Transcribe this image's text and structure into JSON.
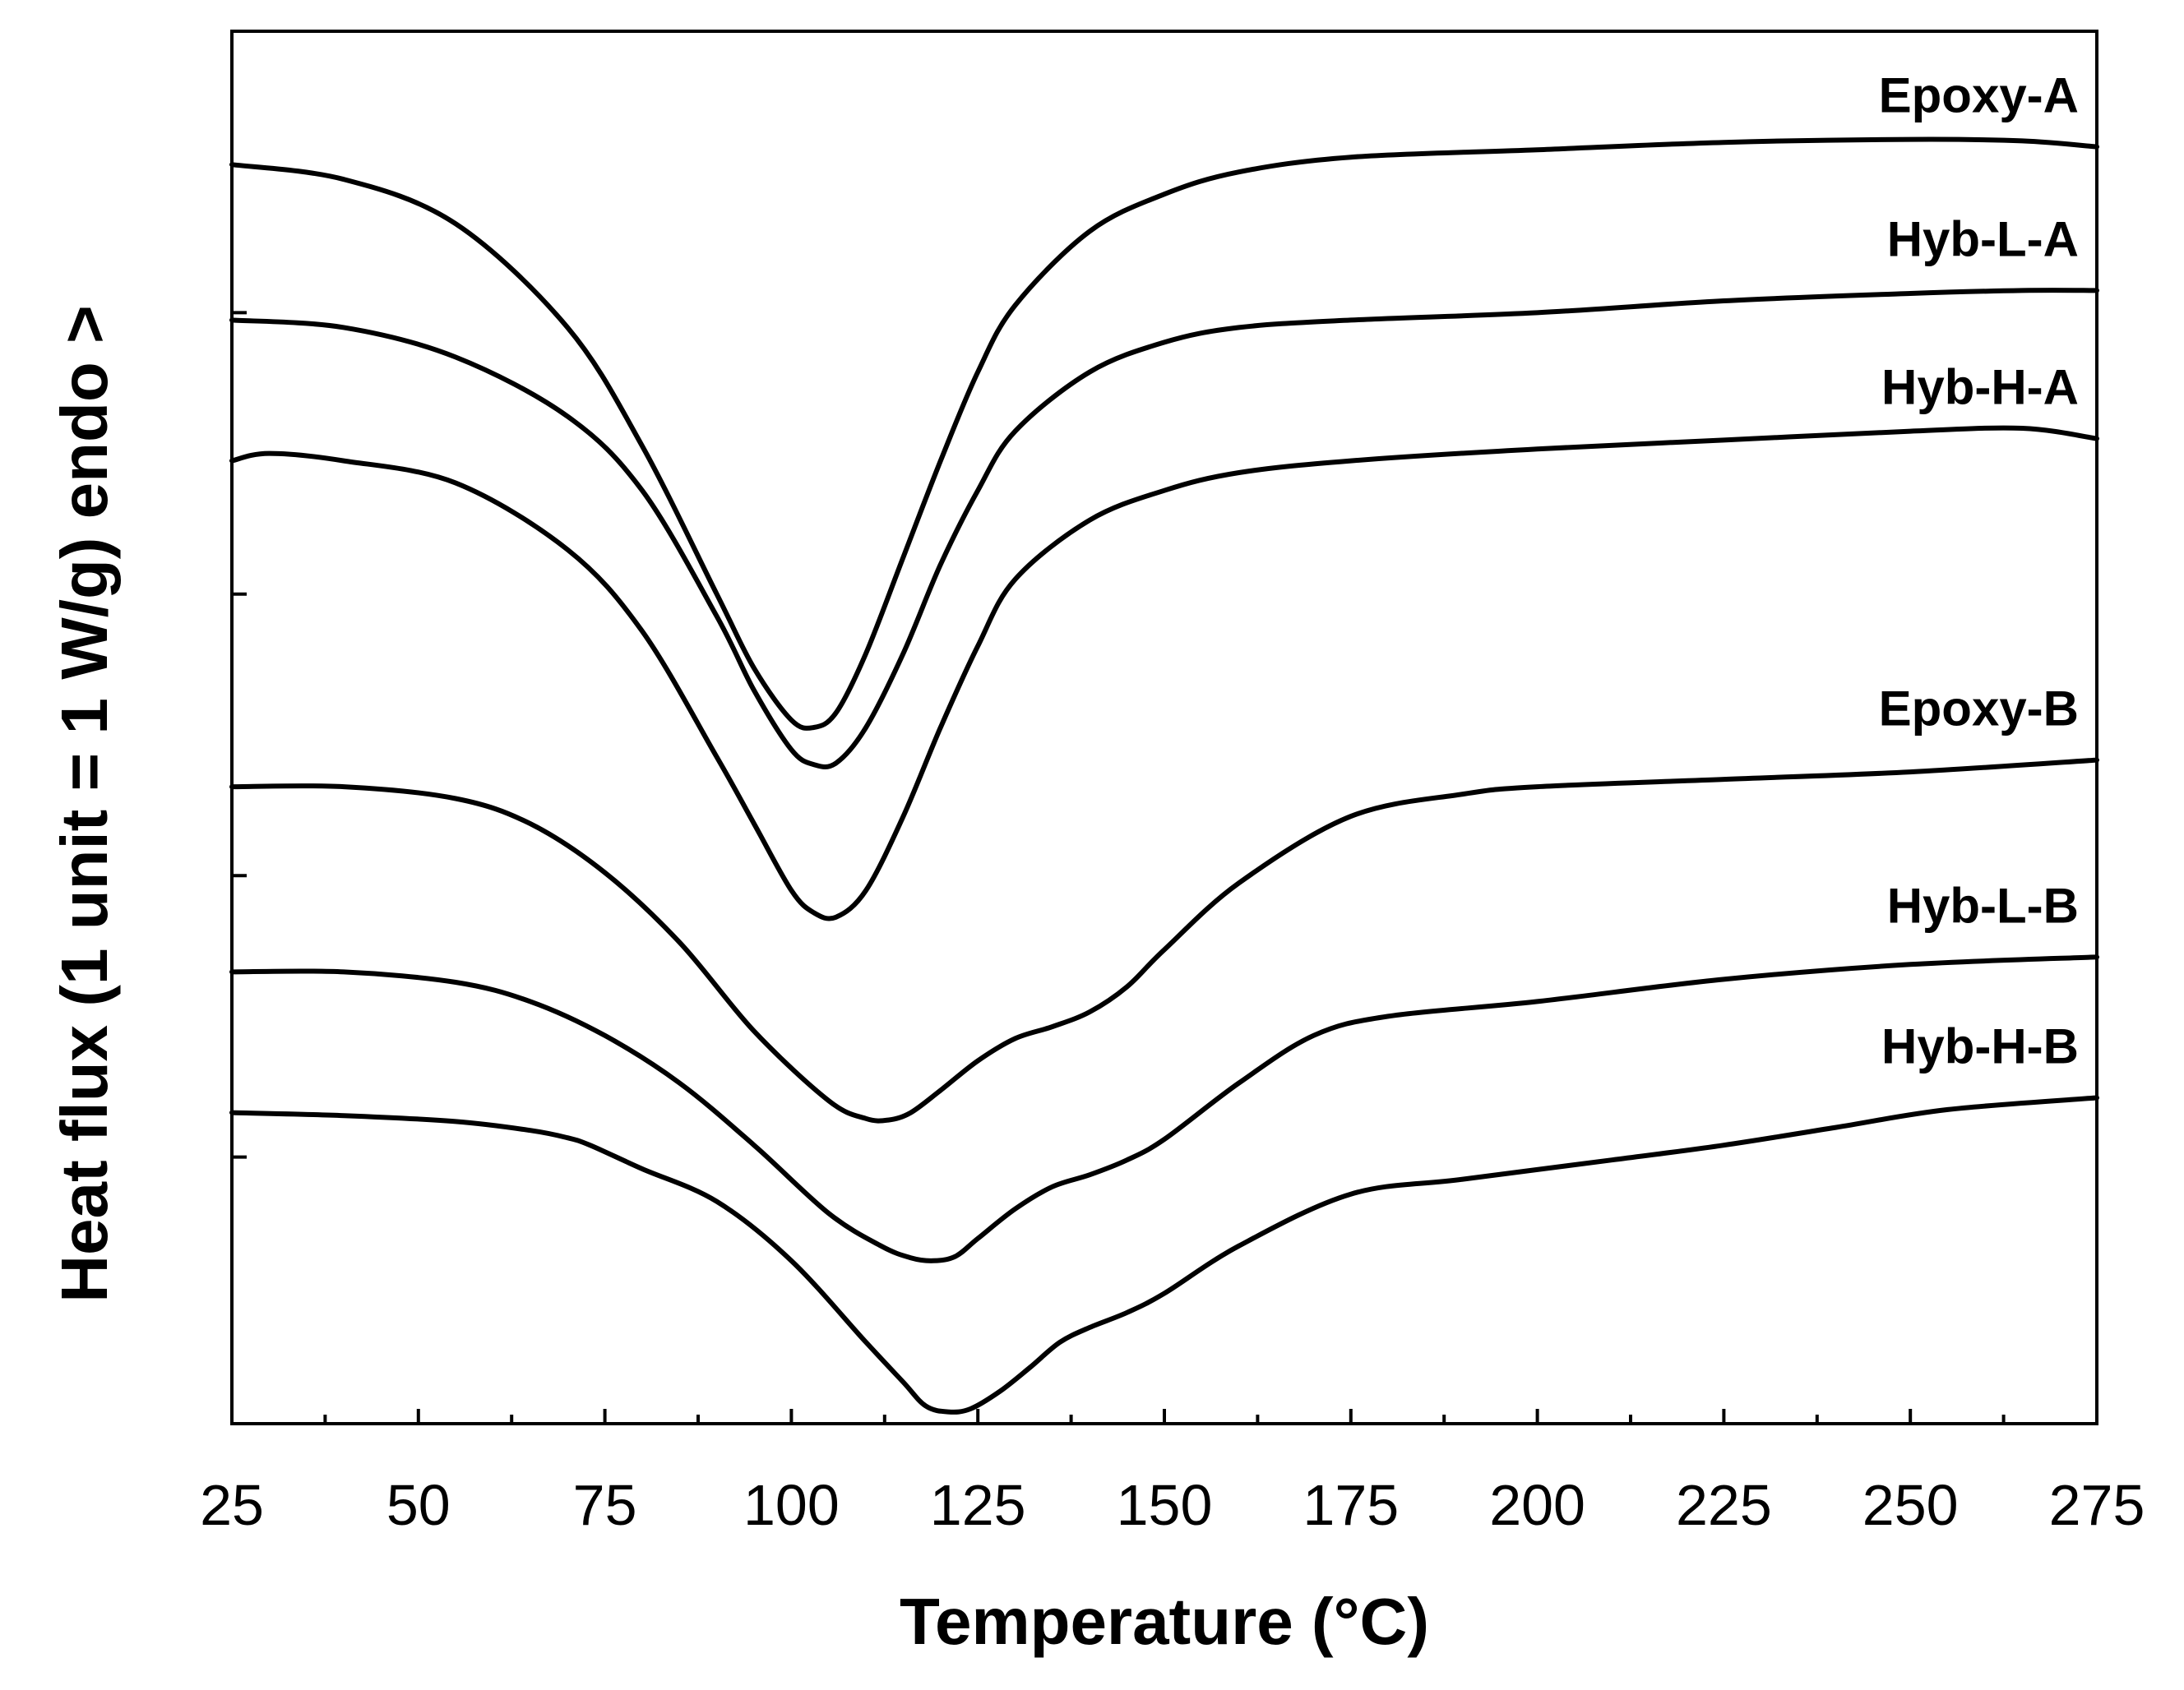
{
  "chart_data": {
    "type": "line",
    "title": "",
    "xlabel": "Temperature (°C)",
    "ylabel": "Heat flux (1 unit = 1 W/g) endo >",
    "xlim": [
      25,
      275
    ],
    "ylim": [
      0,
      9.4
    ],
    "grid": false,
    "legend": "inline labels at right end of each curve",
    "x_ticks": [
      "25",
      "50",
      "75",
      "100",
      "125",
      "150",
      "175",
      "200",
      "225",
      "250",
      "275"
    ],
    "series": [
      {
        "name": "Epoxy-A",
        "x": [
          25,
          40,
          55,
          70,
          80,
          90,
          95,
          100,
          103,
          106,
          110,
          115,
          120,
          125,
          130,
          140,
          150,
          160,
          175,
          200,
          225,
          250,
          265,
          275
        ],
        "y": [
          8.5,
          8.4,
          8.1,
          7.4,
          6.6,
          5.6,
          5.1,
          4.75,
          4.7,
          4.8,
          5.2,
          5.85,
          6.5,
          7.1,
          7.55,
          8.05,
          8.3,
          8.45,
          8.55,
          8.6,
          8.65,
          8.67,
          8.66,
          8.62
        ]
      },
      {
        "name": "Hyb-L-A",
        "x": [
          25,
          40,
          55,
          70,
          80,
          90,
          95,
          100,
          103,
          106,
          110,
          115,
          120,
          125,
          130,
          140,
          150,
          160,
          175,
          200,
          225,
          250,
          265,
          275
        ],
        "y": [
          7.45,
          7.4,
          7.2,
          6.8,
          6.3,
          5.45,
          4.95,
          4.55,
          4.45,
          4.46,
          4.7,
          5.2,
          5.8,
          6.3,
          6.7,
          7.1,
          7.3,
          7.4,
          7.45,
          7.5,
          7.58,
          7.63,
          7.65,
          7.65
        ]
      },
      {
        "name": "Hyb-H-A",
        "x": [
          25,
          30,
          40,
          55,
          70,
          80,
          90,
          95,
          100,
          103,
          106,
          110,
          115,
          120,
          125,
          130,
          140,
          150,
          160,
          175,
          200,
          225,
          250,
          265,
          275
        ],
        "y": [
          6.5,
          6.55,
          6.5,
          6.35,
          5.9,
          5.35,
          4.5,
          4.05,
          3.6,
          3.45,
          3.42,
          3.6,
          4.1,
          4.7,
          5.25,
          5.7,
          6.1,
          6.3,
          6.42,
          6.5,
          6.58,
          6.64,
          6.7,
          6.72,
          6.65
        ]
      },
      {
        "name": "Epoxy-B",
        "x": [
          25,
          40,
          55,
          65,
          75,
          85,
          95,
          105,
          110,
          113,
          116,
          120,
          125,
          130,
          135,
          140,
          145,
          150,
          160,
          175,
          190,
          200,
          225,
          250,
          275
        ],
        "y": [
          4.3,
          4.3,
          4.22,
          4.05,
          3.72,
          3.25,
          2.65,
          2.18,
          2.06,
          2.05,
          2.1,
          2.25,
          2.45,
          2.6,
          2.68,
          2.78,
          2.95,
          3.2,
          3.65,
          4.1,
          4.25,
          4.3,
          4.35,
          4.4,
          4.48
        ]
      },
      {
        "name": "Hyb-L-B",
        "x": [
          25,
          40,
          55,
          65,
          75,
          85,
          95,
          105,
          112,
          116,
          119,
          122,
          125,
          130,
          135,
          140,
          145,
          150,
          160,
          170,
          180,
          200,
          225,
          250,
          275
        ],
        "y": [
          3.05,
          3.05,
          2.98,
          2.85,
          2.62,
          2.3,
          1.88,
          1.42,
          1.2,
          1.12,
          1.1,
          1.13,
          1.25,
          1.45,
          1.6,
          1.68,
          1.78,
          1.92,
          2.3,
          2.62,
          2.75,
          2.85,
          3.0,
          3.1,
          3.15
        ]
      },
      {
        "name": "Hyb-H-B",
        "x": [
          25,
          40,
          55,
          65,
          70,
          73,
          80,
          90,
          100,
          110,
          115,
          118,
          121,
          124,
          128,
          132,
          136,
          140,
          145,
          150,
          160,
          175,
          190,
          210,
          225,
          240,
          255,
          275
        ],
        "y": [
          2.1,
          2.08,
          2.04,
          1.98,
          1.93,
          1.88,
          1.72,
          1.5,
          1.1,
          0.55,
          0.28,
          0.12,
          0.08,
          0.1,
          0.22,
          0.38,
          0.55,
          0.65,
          0.75,
          0.88,
          1.2,
          1.55,
          1.65,
          1.78,
          1.88,
          2.0,
          2.12,
          2.2
        ]
      }
    ]
  }
}
